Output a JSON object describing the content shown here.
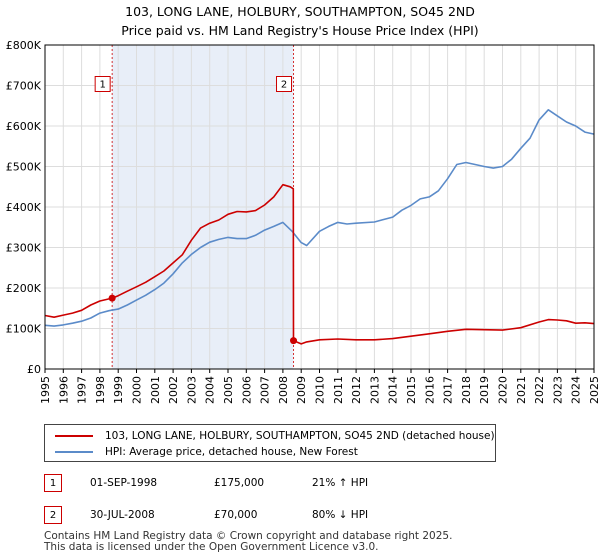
{
  "title": {
    "line1": "103, LONG LANE, HOLBURY, SOUTHAMPTON, SO45 2ND",
    "line2": "Price paid vs. HM Land Registry's House Price Index (HPI)"
  },
  "colors": {
    "property": "#cc0000",
    "hpi": "#5b8bc9",
    "shade": "#e8eef8",
    "grid": "#dddddd",
    "marker_border": "#cc0000"
  },
  "chart_data": {
    "type": "line",
    "x_range": [
      1995,
      2025
    ],
    "ylim": [
      0,
      800000
    ],
    "y_ticks": [
      {
        "value": 0,
        "label": "£0"
      },
      {
        "value": 100000,
        "label": "£100K"
      },
      {
        "value": 200000,
        "label": "£200K"
      },
      {
        "value": 300000,
        "label": "£300K"
      },
      {
        "value": 400000,
        "label": "£400K"
      },
      {
        "value": 500000,
        "label": "£500K"
      },
      {
        "value": 600000,
        "label": "£600K"
      },
      {
        "value": 700000,
        "label": "£700K"
      },
      {
        "value": 800000,
        "label": "£800K"
      }
    ],
    "x_ticks": [
      "1995",
      "1996",
      "1997",
      "1998",
      "1999",
      "2000",
      "2001",
      "2002",
      "2003",
      "2004",
      "2005",
      "2006",
      "2007",
      "2008",
      "2009",
      "2010",
      "2011",
      "2012",
      "2013",
      "2014",
      "2015",
      "2016",
      "2017",
      "2018",
      "2019",
      "2020",
      "2021",
      "2022",
      "2023",
      "2024",
      "2025"
    ],
    "grid": true,
    "shaded_range": [
      1998.67,
      2008.58
    ],
    "markers": [
      {
        "label": "1",
        "x": 1998.67,
        "y": 175000
      },
      {
        "label": "2",
        "x": 2008.58,
        "y": 70000
      }
    ],
    "series": [
      {
        "name": "103, LONG LANE, HOLBURY, SOUTHAMPTON, SO45 2ND (detached house)",
        "x": [
          1995,
          1995.5,
          1996,
          1996.5,
          1997,
          1997.5,
          1998,
          1998.67,
          1999,
          1999.5,
          2000,
          2000.5,
          2001,
          2001.5,
          2002,
          2002.5,
          2003,
          2003.5,
          2004,
          2004.5,
          2005,
          2005.5,
          2006,
          2006.5,
          2007,
          2007.5,
          2008,
          2008.4,
          2008.57,
          2008.58,
          2009,
          2009.3,
          2010,
          2011,
          2012,
          2013,
          2014,
          2015,
          2016,
          2017,
          2018,
          2019,
          2020,
          2021,
          2022,
          2022.5,
          2023,
          2023.5,
          2024,
          2024.5,
          2025
        ],
        "y": [
          132000,
          128000,
          133000,
          138000,
          145000,
          158000,
          168000,
          175000,
          181000,
          192000,
          203000,
          214000,
          228000,
          242000,
          262000,
          282000,
          318000,
          348000,
          360000,
          368000,
          382000,
          389000,
          388000,
          391000,
          405000,
          425000,
          455000,
          450000,
          445000,
          70000,
          62000,
          67000,
          72000,
          74000,
          72000,
          72000,
          75000,
          81000,
          87000,
          93000,
          98000,
          97000,
          96000,
          102000,
          116000,
          122000,
          121000,
          119000,
          113000,
          114000,
          112000
        ]
      },
      {
        "name": "HPI: Average price, detached house, New Forest",
        "x": [
          1995,
          1995.5,
          1996,
          1996.5,
          1997,
          1997.5,
          1998,
          1998.5,
          1999,
          1999.5,
          2000,
          2000.5,
          2001,
          2001.5,
          2002,
          2002.5,
          2003,
          2003.5,
          2004,
          2004.5,
          2005,
          2005.5,
          2006,
          2006.5,
          2007,
          2007.5,
          2008,
          2008.5,
          2009,
          2009.3,
          2010,
          2010.5,
          2011,
          2011.5,
          2012,
          2013,
          2014,
          2014.5,
          2015,
          2015.5,
          2016,
          2016.5,
          2017,
          2017.5,
          2018,
          2018.5,
          2019,
          2019.5,
          2020,
          2020.5,
          2021,
          2021.5,
          2022,
          2022.5,
          2023,
          2023.5,
          2024,
          2024.5,
          2025
        ],
        "y": [
          108000,
          106000,
          109000,
          113000,
          118000,
          126000,
          138000,
          144000,
          148000,
          158000,
          170000,
          182000,
          196000,
          212000,
          235000,
          262000,
          283000,
          300000,
          313000,
          320000,
          325000,
          322000,
          322000,
          330000,
          343000,
          352000,
          362000,
          340000,
          312000,
          305000,
          340000,
          352000,
          362000,
          358000,
          360000,
          363000,
          375000,
          392000,
          404000,
          420000,
          425000,
          440000,
          470000,
          505000,
          510000,
          505000,
          500000,
          496000,
          500000,
          518000,
          545000,
          570000,
          615000,
          640000,
          625000,
          610000,
          600000,
          585000,
          580000
        ]
      }
    ]
  },
  "legend": {
    "property_label": "103, LONG LANE, HOLBURY, SOUTHAMPTON, SO45 2ND (detached house)",
    "hpi_label": "HPI: Average price, detached house, New Forest"
  },
  "transactions": [
    {
      "num": "1",
      "date": "01-SEP-1998",
      "price": "£175,000",
      "hpi": "21% ↑ HPI"
    },
    {
      "num": "2",
      "date": "30-JUL-2008",
      "price": "£70,000",
      "hpi": "80% ↓ HPI"
    }
  ],
  "footer": {
    "line1": "Contains HM Land Registry data © Crown copyright and database right 2025.",
    "line2": "This data is licensed under the Open Government Licence v3.0."
  }
}
